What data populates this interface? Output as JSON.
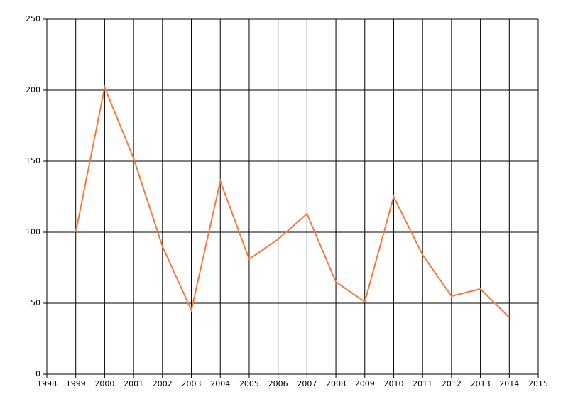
{
  "chart_data": {
    "type": "line",
    "x": [
      1999,
      2000,
      2001,
      2002,
      2003,
      2004,
      2005,
      2006,
      2007,
      2008,
      2009,
      2010,
      2011,
      2012,
      2013,
      2014
    ],
    "series": [
      {
        "color": "#f4793c",
        "values": [
          100,
          202,
          152,
          90,
          45,
          136,
          81,
          95,
          113,
          65,
          51,
          125,
          84,
          55,
          60,
          40
        ]
      }
    ],
    "xlim": [
      1998,
      2015
    ],
    "xticks": [
      1998,
      1999,
      2000,
      2001,
      2002,
      2003,
      2004,
      2005,
      2006,
      2007,
      2008,
      2009,
      2010,
      2011,
      2012,
      2013,
      2014,
      2015
    ],
    "ylim": [
      0,
      250
    ],
    "yticks": [
      0,
      50,
      100,
      150,
      200,
      250
    ],
    "grid": true
  }
}
